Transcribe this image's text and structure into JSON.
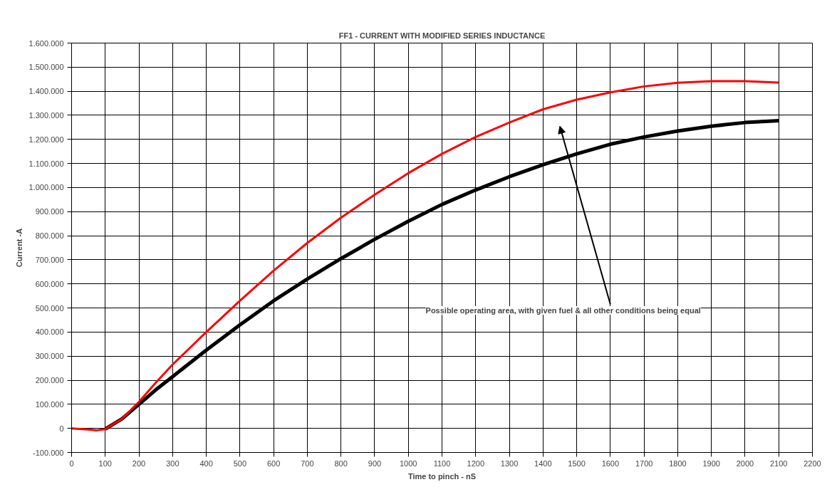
{
  "chart_data": {
    "type": "line",
    "title": "FF1 - CURRENT WITH MODIFIED SERIES INDUCTANCE",
    "xlabel": "Time to pinch - nS",
    "ylabel": "Current -A",
    "x": [
      0,
      50,
      75,
      100,
      150,
      200,
      250,
      300,
      400,
      500,
      600,
      700,
      800,
      900,
      1000,
      1100,
      1200,
      1300,
      1400,
      1500,
      1600,
      1700,
      1800,
      1900,
      2000,
      2100
    ],
    "series": [
      {
        "color": "#ff0000",
        "values": [
          0,
          -5000,
          -8000,
          -3000,
          40000,
          110000,
          190000,
          265000,
          400000,
          530000,
          655000,
          770000,
          875000,
          970000,
          1060000,
          1140000,
          1210000,
          1270000,
          1325000,
          1365000,
          1395000,
          1420000,
          1435000,
          1442000,
          1442000,
          1436000
        ]
      },
      {
        "color": "#000000",
        "x": [
          100,
          150,
          200,
          250,
          300,
          400,
          500,
          600,
          700,
          800,
          900,
          1000,
          1100,
          1200,
          1300,
          1400,
          1500,
          1600,
          1700,
          1800,
          1900,
          2000,
          2100
        ],
        "values": [
          -3000,
          40000,
          100000,
          160000,
          215000,
          325000,
          430000,
          530000,
          620000,
          705000,
          785000,
          860000,
          930000,
          990000,
          1045000,
          1095000,
          1140000,
          1180000,
          1210000,
          1235000,
          1255000,
          1270000,
          1278000
        ]
      }
    ],
    "xlim": [
      0,
      2200
    ],
    "xticks": [
      0,
      100,
      200,
      300,
      400,
      500,
      600,
      700,
      800,
      900,
      1000,
      1100,
      1200,
      1300,
      1400,
      1500,
      1600,
      1700,
      1800,
      1900,
      2000,
      2100,
      2200
    ],
    "ylim": [
      -100000,
      1600000
    ],
    "yticks": [
      {
        "value": -100000,
        "label": "-100.000"
      },
      {
        "value": 0,
        "label": "0"
      },
      {
        "value": 100000,
        "label": "100.000"
      },
      {
        "value": 200000,
        "label": "200.000"
      },
      {
        "value": 300000,
        "label": "300.000"
      },
      {
        "value": 400000,
        "label": "400.000"
      },
      {
        "value": 500000,
        "label": "500.000"
      },
      {
        "value": 600000,
        "label": "600.000"
      },
      {
        "value": 700000,
        "label": "700.000"
      },
      {
        "value": 800000,
        "label": "800.000"
      },
      {
        "value": 900000,
        "label": "900.000"
      },
      {
        "value": 1000000,
        "label": "1.000.000"
      },
      {
        "value": 1100000,
        "label": "1.100.000"
      },
      {
        "value": 1200000,
        "label": "1.200.000"
      },
      {
        "value": 1300000,
        "label": "1.300.000"
      },
      {
        "value": 1400000,
        "label": "1.400.000"
      },
      {
        "value": 1500000,
        "label": "1.500.000"
      },
      {
        "value": 1600000,
        "label": "1.600.000"
      }
    ],
    "grid": true,
    "marker": "none",
    "line_style": "solid",
    "annotations": [
      "Possible operating area, with given fuel & all other conditions being equal"
    ]
  }
}
